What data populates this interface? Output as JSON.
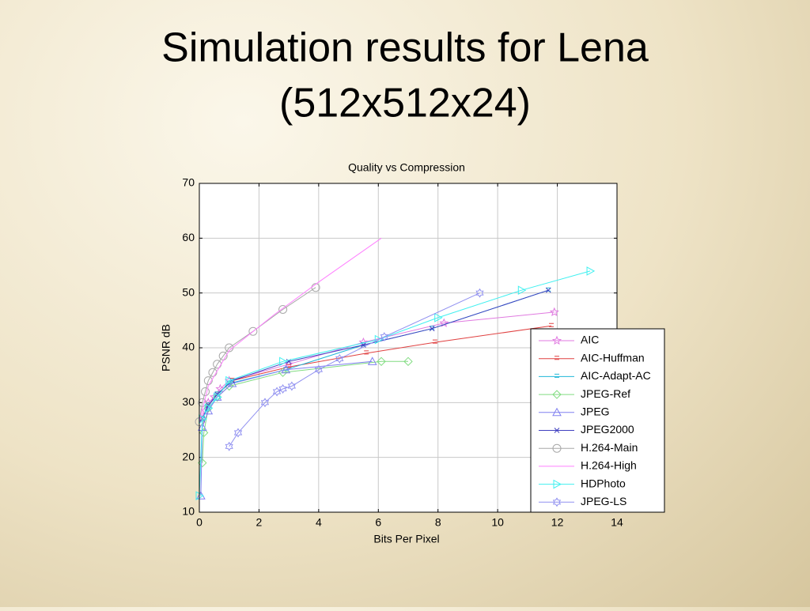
{
  "slide": {
    "title_lines": [
      "Simulation results for Lena",
      "(512x512x24)"
    ]
  },
  "chart_data": {
    "type": "line",
    "title": "Quality vs Compression",
    "x_label": "Bits Per Pixel",
    "y_label": "PSNR dB",
    "xlim": [
      0,
      14
    ],
    "ylim": [
      10,
      70
    ],
    "xticks": [
      0,
      2,
      4,
      6,
      8,
      10,
      12,
      14
    ],
    "yticks": [
      10,
      20,
      30,
      40,
      50,
      60,
      70
    ],
    "grid": true,
    "legend": "lower right",
    "series": [
      {
        "name": "AIC",
        "color": "#e07ae0",
        "marker": "star",
        "x": [
          0.1,
          0.2,
          0.3,
          0.5,
          0.7,
          1,
          3,
          5.5,
          8.2,
          11.9
        ],
        "values": [
          27,
          28.5,
          30,
          31,
          32.5,
          34,
          37,
          41,
          44.5,
          46.5
        ]
      },
      {
        "name": "AIC-Huffman",
        "color": "#e04040",
        "marker": "dash",
        "x": [
          0.1,
          0.3,
          0.6,
          1.1,
          3,
          5.6,
          7.9,
          11.8
        ],
        "values": [
          27,
          29.5,
          31.5,
          34,
          36.5,
          39,
          41,
          44
        ]
      },
      {
        "name": "AIC-Adapt-AC",
        "color": "#20b8d8",
        "marker": "dash",
        "x": [
          0.1,
          0.3,
          0.6,
          1,
          2.9,
          5.5,
          7.8,
          11.7
        ],
        "values": [
          27,
          29.5,
          31.5,
          33.5,
          36,
          40.5,
          43.5,
          50.5
        ]
      },
      {
        "name": "JPEG-Ref",
        "color": "#80dc80",
        "marker": "diamond",
        "x": [
          0.1,
          0.15,
          0.3,
          0.6,
          1,
          2.8,
          6.1,
          7
        ],
        "values": [
          19,
          24.5,
          29,
          31,
          33,
          35.5,
          37.5,
          37.5
        ]
      },
      {
        "name": "JPEG",
        "color": "#8080f0",
        "marker": "triangle",
        "x": [
          0.05,
          0.1,
          0.3,
          0.6,
          1.1,
          2.9,
          5.8
        ],
        "values": [
          13,
          25.5,
          28.5,
          31,
          33.5,
          36,
          37.5
        ]
      },
      {
        "name": "JPEG2000",
        "color": "#4040c0",
        "marker": "x",
        "x": [
          0.1,
          0.3,
          0.6,
          1.1,
          3,
          5.5,
          7.8,
          11.7
        ],
        "values": [
          27,
          29.5,
          31.5,
          34,
          37.5,
          40.5,
          43.5,
          50.5
        ]
      },
      {
        "name": "H.264-Main",
        "color": "#a8a8a8",
        "marker": "circle",
        "x": [
          0,
          0.1,
          0.2,
          0.3,
          0.45,
          0.6,
          0.8,
          1,
          1.8,
          2.8,
          3.9
        ],
        "values": [
          26.5,
          30,
          32,
          34,
          35.5,
          37,
          38.5,
          40,
          43,
          47,
          51
        ]
      },
      {
        "name": "H.264-High",
        "color": "#ff80ff",
        "marker": "none",
        "x": [
          0,
          0.3,
          1,
          2.5,
          4,
          6.1
        ],
        "values": [
          26.5,
          33,
          39.5,
          46,
          52,
          60
        ]
      },
      {
        "name": "HDPhoto",
        "color": "#40f0f0",
        "marker": "triangle-right",
        "x": [
          0,
          0.1,
          0.3,
          0.6,
          1,
          2.8,
          6,
          8,
          10.8,
          13.1
        ],
        "values": [
          13,
          27,
          29,
          31,
          34,
          37.5,
          41.5,
          45.5,
          50.5,
          54
        ]
      },
      {
        "name": "JPEG-LS",
        "color": "#9090f0",
        "marker": "hexagram",
        "x": [
          1,
          1.3,
          2.2,
          2.6,
          2.8,
          3.1,
          4,
          4.7,
          6.2,
          9.4
        ],
        "values": [
          22,
          24.5,
          30,
          32,
          32.5,
          33,
          36,
          38,
          42,
          50
        ]
      }
    ]
  }
}
